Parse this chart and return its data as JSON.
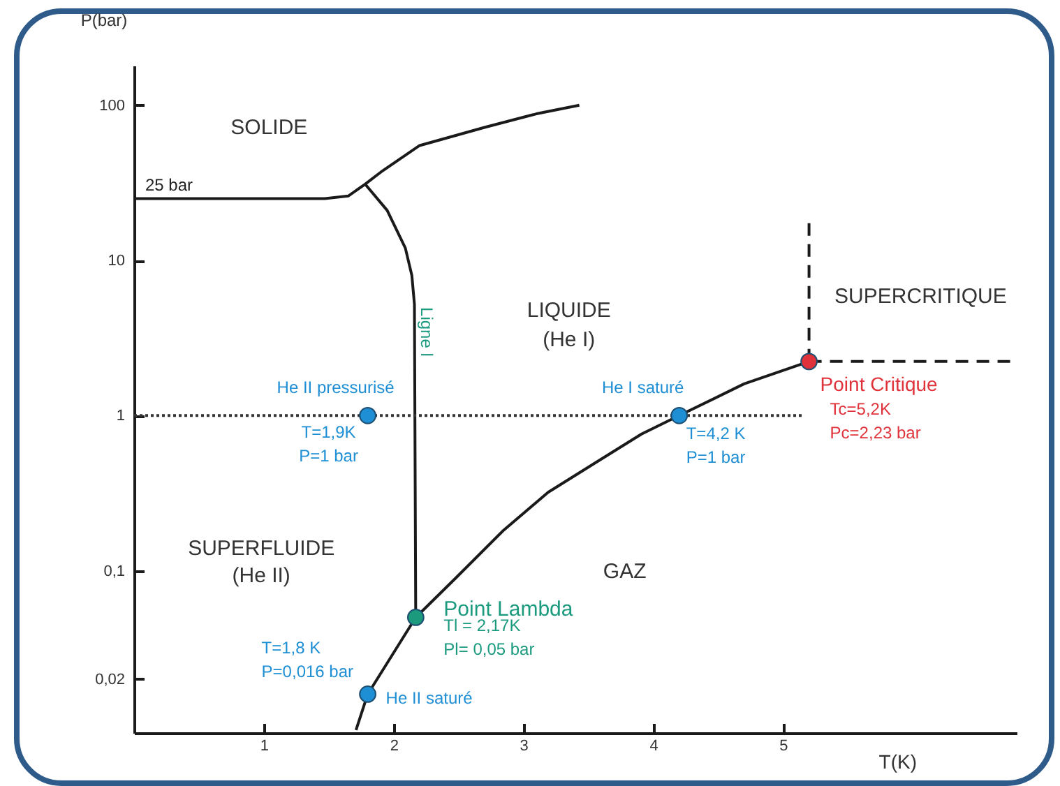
{
  "chart_data": {
    "type": "line",
    "xlabel": "T(K)",
    "ylabel": "P(bar)",
    "log": "y",
    "xlim": [
      0,
      6.8
    ],
    "ylim": [
      0.009,
      180
    ],
    "xticks": [
      1,
      2,
      3,
      4,
      5
    ],
    "yticks": [
      {
        "value": 0.02,
        "label": "0,02"
      },
      {
        "value": 0.1,
        "label": "0,1"
      },
      1,
      10,
      100
    ],
    "grid": false,
    "series": [
      {
        "color": "#1a1a1a",
        "line_style": "solid",
        "marker": "none",
        "x": [
          0,
          1.47,
          1.65,
          1.78,
          1.9,
          2.2,
          2.7,
          3.1,
          3.43
        ],
        "values": [
          25,
          25,
          26,
          31,
          37,
          55,
          72,
          88,
          100
        ]
      },
      {
        "color": "#1a1a1a",
        "line_style": "solid",
        "marker": "none",
        "x": [
          1.78,
          1.95,
          2.09,
          2.14,
          2.16,
          2.17
        ],
        "values": [
          31,
          21,
          12,
          8,
          5.2,
          0.05
        ]
      },
      {
        "color": "#1a1a1a",
        "line_style": "solid",
        "marker": "none",
        "x": [
          1.71,
          1.8,
          2.17,
          2.48,
          2.84,
          3.19,
          3.56,
          3.91,
          4.2,
          4.7,
          5.2
        ],
        "values": [
          0.0094,
          0.016,
          0.05,
          0.09,
          0.18,
          0.32,
          0.5,
          0.76,
          1,
          1.6,
          2.23
        ]
      },
      {
        "color": "#1a1a1a",
        "line_style": "dashed",
        "marker": "none",
        "x": [
          5.2,
          5.2
        ],
        "values": [
          2.23,
          18
        ]
      },
      {
        "color": "#1a1a1a",
        "line_style": "dashed",
        "marker": "none",
        "x": [
          5.2,
          6.76
        ],
        "values": [
          2.23,
          2.23
        ]
      },
      {
        "color": "#333333",
        "line_style": "dotted",
        "marker": "none",
        "x": [
          0,
          5.15
        ],
        "values": [
          1,
          1
        ]
      },
      {
        "type": "scatter",
        "name": "He II pressurisé",
        "color": "#1e8fd5",
        "marker": "circle",
        "x": [
          1.8
        ],
        "values": [
          1
        ]
      },
      {
        "type": "scatter",
        "name": "He I saturé",
        "color": "#1e8fd5",
        "marker": "circle",
        "x": [
          4.2
        ],
        "values": [
          1
        ]
      },
      {
        "type": "scatter",
        "name": "Point Critique",
        "color": "#e0323a",
        "marker": "circle",
        "x": [
          5.2
        ],
        "values": [
          2.23
        ]
      },
      {
        "type": "scatter",
        "name": "Point Lambda",
        "color": "#1b9a7e",
        "marker": "circle",
        "x": [
          2.17
        ],
        "values": [
          0.05
        ]
      },
      {
        "type": "scatter",
        "name": "He II saturé",
        "color": "#1e8fd5",
        "marker": "circle",
        "x": [
          1.8
        ],
        "values": [
          0.016
        ]
      }
    ],
    "annotations": [
      {
        "text": "25 bar",
        "x": 0,
        "y": 25
      },
      {
        "text": "Ligne l",
        "x": 2.17,
        "y": 4
      },
      {
        "text": "T=1,9K\nP=1 bar",
        "x": 1.8,
        "y": 1
      },
      {
        "text": "T=4,2 K\nP=1 bar",
        "x": 4.2,
        "y": 1
      },
      {
        "text": "Tc=5,2K\nPc=2,23 bar",
        "x": 5.2,
        "y": 2.23
      },
      {
        "text": "Tl = 2,17K\nPl= 0,05 bar",
        "x": 2.17,
        "y": 0.05
      },
      {
        "text": "T=1,8 K\nP=0,016 bar",
        "x": 1.8,
        "y": 0.016
      },
      "SOLIDE",
      "LIQUIDE",
      "(He I)",
      "SUPERCRITIQUE",
      "SUPERFLUIDE",
      "(He II)",
      "GAZ"
    ]
  }
}
